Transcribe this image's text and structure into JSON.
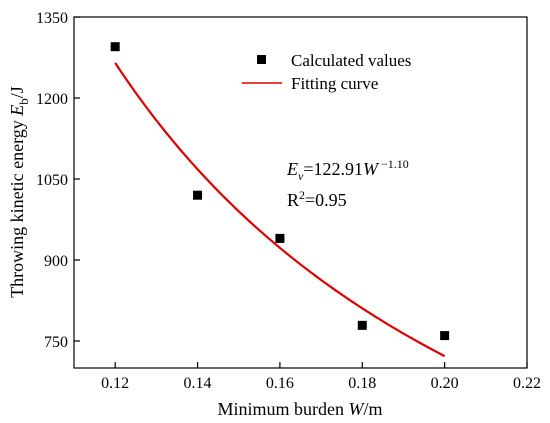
{
  "chart_data": {
    "type": "scatter",
    "xlabel": {
      "pre": "Minimum burden ",
      "var": "W",
      "post": "/m"
    },
    "ylabel": {
      "pre": "Throwing kinetic energy ",
      "var": "E",
      "sub": "b",
      "post": "/J"
    },
    "xlim": [
      0.11,
      0.22
    ],
    "ylim": [
      700,
      1350
    ],
    "x_ticks": [
      "0.12",
      "0.14",
      "0.16",
      "0.18",
      "0.20",
      "0.22"
    ],
    "y_ticks": [
      "750",
      "900",
      "1050",
      "1200",
      "1350"
    ],
    "series": [
      {
        "name": "Calculated values",
        "kind": "points",
        "marker": "square",
        "color": "#000000",
        "x": [
          0.12,
          0.14,
          0.16,
          0.18,
          0.2
        ],
        "y": [
          1295,
          1020,
          940,
          779,
          760
        ]
      },
      {
        "name": "Fitting curve",
        "kind": "line",
        "color": "#e00000",
        "x_range": [
          0.12,
          0.2
        ],
        "y_at_x_min": 1265,
        "y_at_x_max": 722
      }
    ],
    "annotations": {
      "equation": {
        "var": "E",
        "sub": "v",
        "eq": "=122.91",
        "var2": "W",
        "exp": " −1.10"
      },
      "r2": {
        "pre": "R",
        "sup": "2",
        "post": "=0.95"
      }
    },
    "legend_position": "top-right",
    "grid": false
  }
}
